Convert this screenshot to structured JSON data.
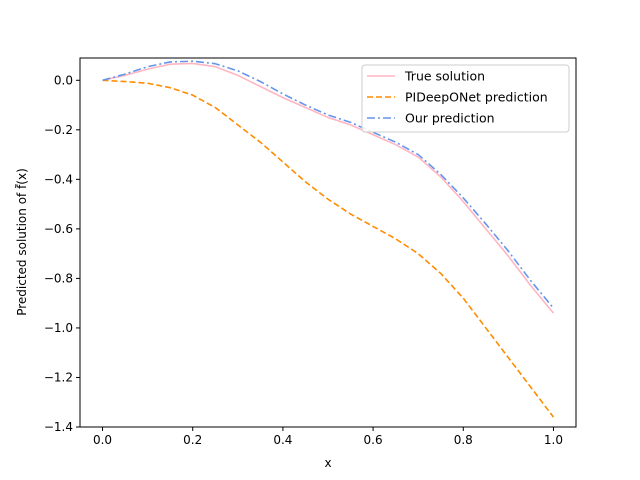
{
  "chart_data": {
    "type": "line",
    "xlabel": "x",
    "ylabel": "Predicted solution of f̃(x)",
    "xlim": [
      -0.05,
      1.05
    ],
    "ylim": [
      -1.4,
      0.09
    ],
    "xticks": [
      0.0,
      0.2,
      0.4,
      0.6,
      0.8,
      1.0
    ],
    "xtick_labels": [
      "0.0",
      "0.2",
      "0.4",
      "0.6",
      "0.8",
      "1.0"
    ],
    "yticks": [
      0.0,
      -0.2,
      -0.4,
      -0.6,
      -0.8,
      -1.0,
      -1.2,
      -1.4
    ],
    "ytick_labels": [
      "0.0",
      "−0.2",
      "−0.4",
      "−0.6",
      "−0.8",
      "−1.0",
      "−1.2",
      "−1.4"
    ],
    "grid": false,
    "legend_position": "top-right",
    "series": [
      {
        "name": "True solution",
        "color": "#ffb6c1",
        "linestyle": "solid",
        "x": [
          0.0,
          0.05,
          0.1,
          0.15,
          0.2,
          0.25,
          0.3,
          0.35,
          0.4,
          0.45,
          0.5,
          0.55,
          0.6,
          0.65,
          0.7,
          0.75,
          0.8,
          0.85,
          0.9,
          0.95,
          1.0
        ],
        "y": [
          0.0,
          0.02,
          0.045,
          0.065,
          0.068,
          0.055,
          0.02,
          -0.025,
          -0.07,
          -0.11,
          -0.15,
          -0.18,
          -0.22,
          -0.26,
          -0.31,
          -0.39,
          -0.49,
          -0.6,
          -0.71,
          -0.83,
          -0.94
        ]
      },
      {
        "name": "PIDeepONet prediction",
        "color": "#ff8c00",
        "linestyle": "dashed",
        "x": [
          0.0,
          0.05,
          0.1,
          0.15,
          0.2,
          0.25,
          0.3,
          0.35,
          0.4,
          0.45,
          0.5,
          0.55,
          0.6,
          0.65,
          0.7,
          0.75,
          0.8,
          0.85,
          0.9,
          0.95,
          1.0
        ],
        "y": [
          0.0,
          -0.005,
          -0.012,
          -0.03,
          -0.06,
          -0.11,
          -0.18,
          -0.25,
          -0.33,
          -0.41,
          -0.48,
          -0.54,
          -0.59,
          -0.64,
          -0.7,
          -0.78,
          -0.88,
          -1.0,
          -1.12,
          -1.24,
          -1.36
        ]
      },
      {
        "name": "Our prediction",
        "color": "#6495ed",
        "linestyle": "dashdot",
        "x": [
          0.0,
          0.05,
          0.1,
          0.15,
          0.2,
          0.25,
          0.3,
          0.35,
          0.4,
          0.45,
          0.5,
          0.55,
          0.6,
          0.65,
          0.7,
          0.75,
          0.8,
          0.85,
          0.9,
          0.95,
          1.0
        ],
        "y": [
          0.0,
          0.025,
          0.055,
          0.074,
          0.077,
          0.067,
          0.038,
          -0.005,
          -0.055,
          -0.1,
          -0.14,
          -0.17,
          -0.21,
          -0.25,
          -0.3,
          -0.38,
          -0.475,
          -0.58,
          -0.69,
          -0.81,
          -0.92
        ]
      }
    ]
  }
}
